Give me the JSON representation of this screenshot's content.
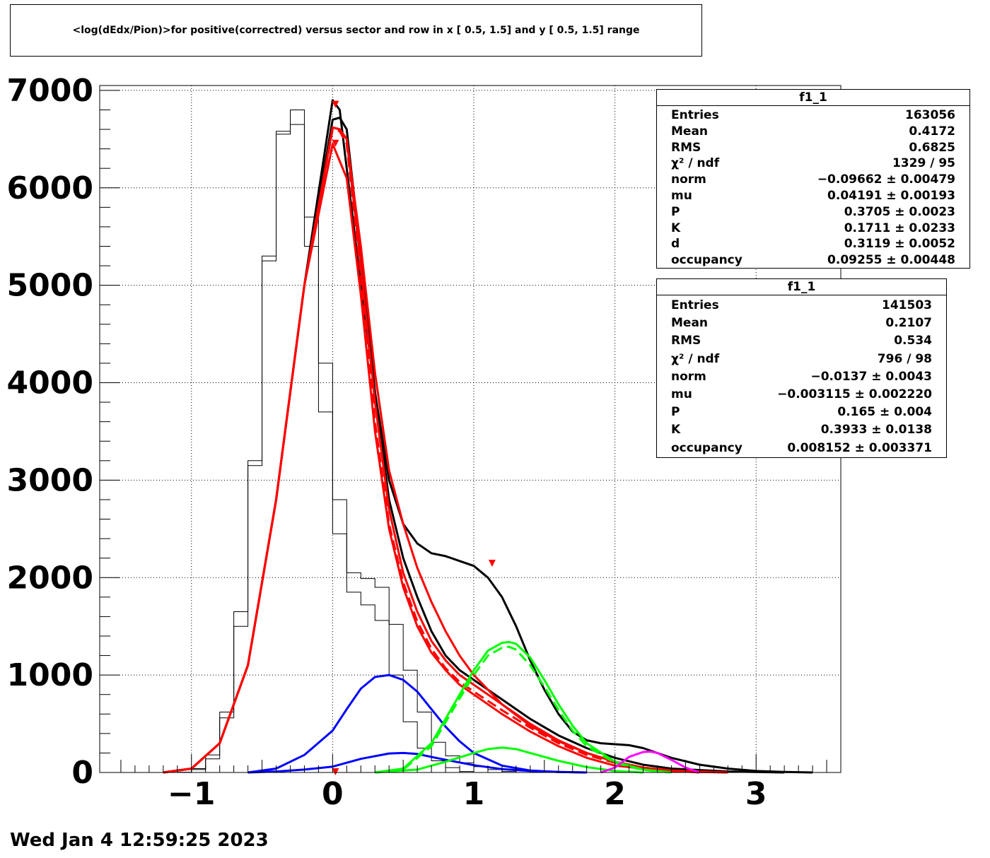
{
  "chart_data": {
    "type": "line",
    "title": "<log(dEdx/Pion)>for positive(correctred) versus sector and row in x [  0.5,  1.5] and y [  0.5,  1.5] range",
    "xlabel": "",
    "ylabel": "",
    "xlim": [
      -1.65,
      3.6
    ],
    "ylim": [
      0,
      7000
    ],
    "x_ticks": [
      "−1",
      "0",
      "1",
      "2",
      "3"
    ],
    "y_ticks": [
      "0",
      "1000",
      "2000",
      "3000",
      "4000",
      "5000",
      "6000",
      "7000"
    ],
    "grid": true,
    "histogram_outer": {
      "x_start": -1.5,
      "bin_width": 0.1,
      "values": [
        0,
        0,
        0,
        0,
        2,
        40,
        180,
        620,
        1650,
        3150,
        5250,
        6580,
        6800,
        5400,
        3700,
        2450,
        1850,
        1720,
        1560,
        1000,
        520,
        250,
        120,
        50,
        10,
        0,
        0,
        0,
        0,
        0,
        0,
        0,
        0,
        0,
        0,
        0,
        0,
        0,
        0,
        0,
        0,
        0,
        0,
        0,
        0,
        0,
        0,
        0,
        0,
        0,
        0
      ]
    },
    "histogram_inner": {
      "x_start": -1.5,
      "bin_width": 0.1,
      "values": [
        0,
        0,
        0,
        0,
        2,
        30,
        140,
        560,
        1500,
        3200,
        5300,
        6550,
        6650,
        5700,
        4200,
        2800,
        2050,
        1990,
        1900,
        1520,
        1050,
        620,
        310,
        170,
        100,
        60,
        30,
        10,
        0,
        0,
        0,
        0,
        0,
        0,
        0,
        0,
        0,
        0,
        0,
        0,
        0,
        0,
        0,
        0,
        0,
        0,
        0,
        0,
        0,
        0,
        0
      ]
    },
    "series": [
      {
        "color": "#000000",
        "x": [
          -1.2,
          -1.0,
          -0.8,
          -0.6,
          -0.4,
          -0.2,
          0.0,
          0.05,
          0.1,
          0.2,
          0.3,
          0.4,
          0.5,
          0.6,
          0.7,
          0.8,
          0.9,
          1.0,
          1.1,
          1.2,
          1.3,
          1.4,
          1.5,
          1.6,
          1.7,
          1.8,
          1.9,
          2.0,
          2.1,
          2.2,
          2.3,
          2.4,
          2.6,
          2.8,
          3.0,
          3.2,
          3.4
        ],
        "y": [
          0,
          40,
          300,
          1100,
          2800,
          5000,
          6900,
          6800,
          6200,
          5000,
          3900,
          3000,
          2550,
          2350,
          2250,
          2220,
          2170,
          2120,
          2000,
          1800,
          1500,
          1150,
          850,
          600,
          420,
          330,
          300,
          290,
          280,
          250,
          200,
          150,
          80,
          40,
          15,
          5,
          0
        ]
      },
      {
        "color": "#000000",
        "x": [
          -1.2,
          -1.0,
          -0.8,
          -0.6,
          -0.4,
          -0.2,
          0.0,
          0.05,
          0.1,
          0.2,
          0.3,
          0.4,
          0.5,
          0.6,
          0.7,
          0.8,
          0.9,
          1.0,
          1.2,
          1.4,
          1.6,
          1.8,
          2.0,
          2.2,
          2.4,
          2.8,
          3.2
        ],
        "y": [
          0,
          40,
          300,
          1100,
          2800,
          5000,
          6700,
          6720,
          6600,
          5300,
          3900,
          2800,
          2200,
          1800,
          1450,
          1200,
          1050,
          950,
          750,
          550,
          380,
          250,
          150,
          80,
          40,
          10,
          0
        ]
      },
      {
        "color": "#ff0000",
        "x": [
          -1.2,
          -1.0,
          -0.8,
          -0.6,
          -0.4,
          -0.2,
          0.0,
          0.05,
          0.1,
          0.2,
          0.3,
          0.4,
          0.5,
          0.6,
          0.7,
          0.8,
          0.9,
          1.0,
          1.2,
          1.4,
          1.6,
          1.8,
          2.0,
          2.2,
          2.4,
          2.8
        ],
        "y": [
          0,
          40,
          300,
          1100,
          2800,
          5000,
          6620,
          6600,
          6500,
          5200,
          3800,
          2700,
          2050,
          1650,
          1350,
          1150,
          1000,
          900,
          700,
          500,
          330,
          200,
          110,
          50,
          20,
          0
        ]
      },
      {
        "color": "#ff0000",
        "dash": true,
        "x": [
          -1.2,
          -1.0,
          -0.8,
          -0.6,
          -0.4,
          -0.2,
          0.0,
          0.05,
          0.1,
          0.2,
          0.3,
          0.4,
          0.5,
          0.6,
          0.7,
          0.8,
          0.9,
          1.0,
          1.2,
          1.4,
          1.6,
          1.8,
          2.0,
          2.2,
          2.4,
          2.8
        ],
        "y": [
          0,
          40,
          300,
          1100,
          2800,
          5000,
          6600,
          6580,
          6450,
          5100,
          3600,
          2550,
          1950,
          1550,
          1270,
          1070,
          930,
          830,
          640,
          460,
          300,
          180,
          100,
          45,
          15,
          0
        ]
      },
      {
        "color": "#ff0000",
        "x": [
          -1.2,
          -1.0,
          -0.8,
          -0.6,
          -0.4,
          -0.2,
          0.0,
          0.1,
          0.2,
          0.3,
          0.4,
          0.5,
          0.6,
          0.7,
          0.8,
          0.9,
          1.0,
          1.2,
          1.4,
          1.6,
          1.8,
          2.0,
          2.4,
          2.8
        ],
        "y": [
          0,
          40,
          300,
          1100,
          2800,
          5000,
          6450,
          6100,
          4900,
          3500,
          2500,
          1900,
          1500,
          1230,
          1050,
          900,
          800,
          600,
          420,
          270,
          150,
          70,
          10,
          0
        ]
      },
      {
        "color": "#ff0000",
        "x": [
          -1.2,
          -1.0,
          -0.8,
          -0.6,
          -0.4,
          -0.2,
          0.0,
          0.05,
          0.1,
          0.2,
          0.3,
          0.4,
          0.5,
          0.6,
          0.7,
          0.8,
          0.9,
          1.0,
          1.1,
          1.2,
          1.4,
          1.6,
          1.8,
          2.0,
          2.2,
          2.4,
          2.6
        ],
        "y": [
          0,
          40,
          300,
          1100,
          2800,
          5000,
          6620,
          6600,
          6500,
          5400,
          4100,
          3100,
          2550,
          2100,
          1750,
          1450,
          1200,
          1000,
          850,
          700,
          480,
          320,
          200,
          110,
          50,
          20,
          0
        ]
      },
      {
        "color": "#0000ff",
        "x": [
          -0.6,
          -0.4,
          -0.2,
          0.0,
          0.1,
          0.2,
          0.3,
          0.4,
          0.5,
          0.6,
          0.7,
          0.8,
          0.9,
          1.0,
          1.2,
          1.4,
          1.6,
          1.8
        ],
        "y": [
          0,
          40,
          180,
          430,
          650,
          860,
          980,
          1000,
          950,
          830,
          650,
          470,
          320,
          200,
          70,
          20,
          5,
          0
        ]
      },
      {
        "color": "#0000ff",
        "x": [
          -0.6,
          -0.4,
          -0.2,
          0.0,
          0.2,
          0.4,
          0.5,
          0.6,
          0.8,
          1.0,
          1.2,
          1.4,
          1.6,
          1.8
        ],
        "y": [
          0,
          10,
          30,
          60,
          140,
          195,
          200,
          190,
          130,
          75,
          35,
          15,
          5,
          0
        ]
      },
      {
        "color": "#00ff00",
        "x": [
          0.3,
          0.5,
          0.7,
          0.9,
          1.0,
          1.1,
          1.2,
          1.25,
          1.3,
          1.4,
          1.5,
          1.6,
          1.7,
          1.8,
          2.0,
          2.2,
          2.4
        ],
        "y": [
          0,
          40,
          300,
          800,
          1050,
          1250,
          1330,
          1340,
          1320,
          1180,
          950,
          700,
          480,
          300,
          110,
          30,
          0
        ]
      },
      {
        "color": "#00ff00",
        "dash": true,
        "x": [
          0.3,
          0.5,
          0.7,
          0.9,
          1.0,
          1.1,
          1.2,
          1.25,
          1.3,
          1.4,
          1.5,
          1.6,
          1.7,
          1.8,
          2.0,
          2.2,
          2.4
        ],
        "y": [
          0,
          30,
          270,
          760,
          1000,
          1200,
          1280,
          1290,
          1260,
          1100,
          880,
          640,
          430,
          270,
          100,
          25,
          0
        ]
      },
      {
        "color": "#00ff00",
        "x": [
          0.3,
          0.6,
          0.8,
          1.0,
          1.1,
          1.2,
          1.3,
          1.4,
          1.6,
          1.8,
          2.0,
          2.2
        ],
        "y": [
          0,
          30,
          110,
          200,
          240,
          255,
          240,
          200,
          120,
          55,
          15,
          0
        ]
      },
      {
        "color": "#ff00ff",
        "x": [
          1.9,
          2.0,
          2.1,
          2.2,
          2.25,
          2.3,
          2.4,
          2.5,
          2.6
        ],
        "y": [
          0,
          50,
          160,
          210,
          215,
          200,
          130,
          50,
          0
        ]
      }
    ],
    "markers": {
      "color": "#ff0000",
      "points": [
        [
          0.02,
          6850
        ],
        [
          0.02,
          6450
        ],
        [
          1.13,
          2140
        ],
        [
          0.02,
          0
        ]
      ]
    }
  },
  "stats_box_1": {
    "title": "f1_1",
    "rows": [
      {
        "label": "Entries",
        "value": "163056"
      },
      {
        "label": "Mean",
        "value": "0.4172"
      },
      {
        "label": "RMS",
        "value": "0.6825"
      },
      {
        "label": "χ² / ndf",
        "value": "1329 / 95"
      },
      {
        "label": "norm",
        "value": "−0.09662 ± 0.00479"
      },
      {
        "label": "mu",
        "value": "0.04191 ± 0.00193"
      },
      {
        "label": "P",
        "value": "0.3705 ± 0.0023"
      },
      {
        "label": "K",
        "value": "0.1711 ± 0.0233"
      },
      {
        "label": "d",
        "value": "0.3119 ± 0.0052"
      },
      {
        "label": "occupancy",
        "value": "0.09255 ± 0.00448"
      }
    ]
  },
  "stats_box_2": {
    "title": "f1_1",
    "rows": [
      {
        "label": "Entries",
        "value": "141503"
      },
      {
        "label": "Mean",
        "value": "0.2107"
      },
      {
        "label": "RMS",
        "value": "0.534"
      },
      {
        "label": "χ² / ndf",
        "value": "796 / 98"
      },
      {
        "label": "norm",
        "value": "−0.0137 ± 0.0043"
      },
      {
        "label": "mu",
        "value": "−0.003115 ± 0.002220"
      },
      {
        "label": "P",
        "value": "0.165 ± 0.004"
      },
      {
        "label": "K",
        "value": "0.3933 ± 0.0138"
      },
      {
        "label": "occupancy",
        "value": "0.008152 ± 0.003371"
      }
    ]
  },
  "datestamp": "Wed Jan  4 12:59:25 2023"
}
